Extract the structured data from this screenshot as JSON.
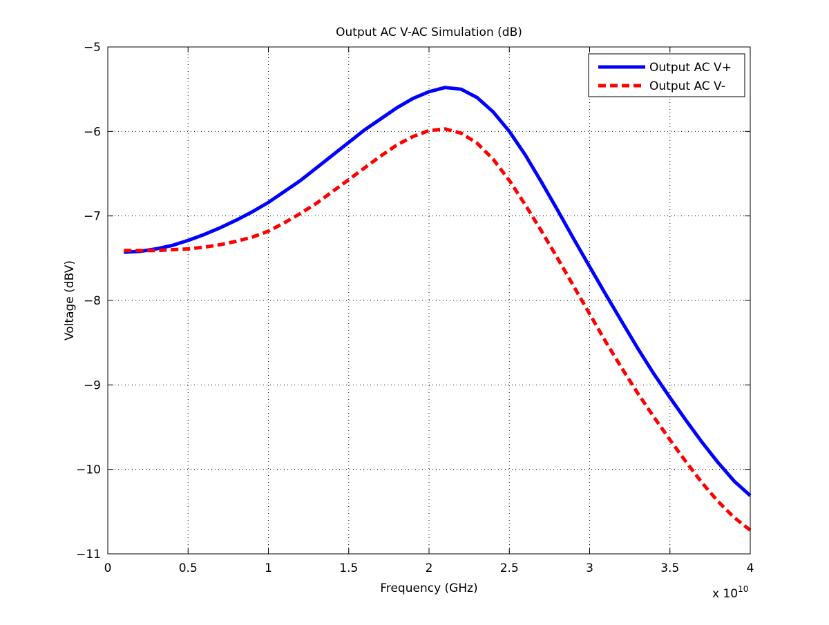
{
  "chart_data": {
    "type": "line",
    "title": "Output AC V-AC Simulation (dB)",
    "xlabel": "Frequency (GHz)",
    "ylabel": "Voltage (dBV)",
    "x_exponent_label": "x 10",
    "x_exponent_power": "10",
    "xlim": [
      0,
      4
    ],
    "ylim": [
      -11,
      -5
    ],
    "xticks": [
      0,
      0.5,
      1,
      1.5,
      2,
      2.5,
      3,
      3.5,
      4
    ],
    "xtick_labels": [
      "0",
      "0.5",
      "1",
      "1.5",
      "2",
      "2.5",
      "3",
      "3.5",
      "4"
    ],
    "yticks": [
      -11,
      -10,
      -9,
      -8,
      -7,
      -6,
      -5
    ],
    "ytick_labels": [
      "−11",
      "−10",
      "−9",
      "−8",
      "−7",
      "−6",
      "−5"
    ],
    "grid": true,
    "legend_position": "top-right",
    "series": [
      {
        "name": "Output AC V+",
        "color": "#0000ff",
        "style": "solid",
        "x": [
          0.1,
          0.2,
          0.3,
          0.4,
          0.5,
          0.6,
          0.7,
          0.8,
          0.9,
          1.0,
          1.1,
          1.2,
          1.3,
          1.4,
          1.5,
          1.6,
          1.7,
          1.8,
          1.9,
          2.0,
          2.1,
          2.2,
          2.3,
          2.4,
          2.5,
          2.6,
          2.7,
          2.8,
          2.9,
          3.0,
          3.1,
          3.2,
          3.3,
          3.4,
          3.5,
          3.6,
          3.7,
          3.8,
          3.9,
          4.0
        ],
        "values": [
          -7.43,
          -7.42,
          -7.39,
          -7.35,
          -7.29,
          -7.22,
          -7.14,
          -7.05,
          -6.95,
          -6.84,
          -6.71,
          -6.58,
          -6.43,
          -6.28,
          -6.13,
          -5.98,
          -5.85,
          -5.72,
          -5.61,
          -5.53,
          -5.48,
          -5.5,
          -5.6,
          -5.77,
          -6.0,
          -6.28,
          -6.6,
          -6.93,
          -7.27,
          -7.6,
          -7.93,
          -8.25,
          -8.57,
          -8.87,
          -9.15,
          -9.42,
          -9.68,
          -9.92,
          -10.14,
          -10.31
        ]
      },
      {
        "name": "Output AC V-",
        "color": "#ff0000",
        "style": "dashed",
        "x": [
          0.1,
          0.2,
          0.3,
          0.4,
          0.5,
          0.6,
          0.7,
          0.8,
          0.9,
          1.0,
          1.1,
          1.2,
          1.3,
          1.4,
          1.5,
          1.6,
          1.7,
          1.8,
          1.9,
          2.0,
          2.1,
          2.2,
          2.3,
          2.4,
          2.5,
          2.6,
          2.7,
          2.8,
          2.9,
          3.0,
          3.1,
          3.2,
          3.3,
          3.4,
          3.5,
          3.6,
          3.7,
          3.8,
          3.9,
          4.0
        ],
        "values": [
          -7.41,
          -7.41,
          -7.41,
          -7.4,
          -7.39,
          -7.37,
          -7.34,
          -7.3,
          -7.25,
          -7.18,
          -7.08,
          -6.97,
          -6.85,
          -6.71,
          -6.57,
          -6.43,
          -6.29,
          -6.16,
          -6.06,
          -5.99,
          -5.97,
          -6.02,
          -6.14,
          -6.33,
          -6.58,
          -6.87,
          -7.18,
          -7.5,
          -7.83,
          -8.16,
          -8.49,
          -8.8,
          -9.1,
          -9.38,
          -9.65,
          -9.91,
          -10.16,
          -10.38,
          -10.57,
          -10.72
        ]
      }
    ]
  }
}
